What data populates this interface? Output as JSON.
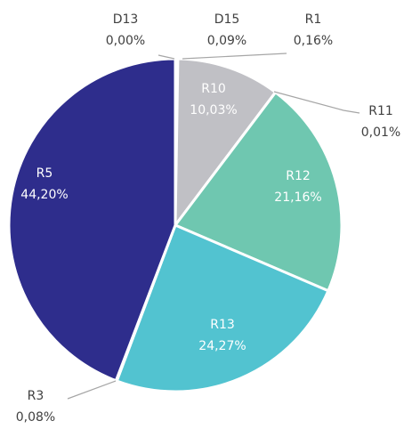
{
  "chart_data": {
    "type": "pie",
    "categories": [
      "D13",
      "D15",
      "R1",
      "R10",
      "R11",
      "R12",
      "R13",
      "R3",
      "R5"
    ],
    "values": [
      0.0,
      0.09,
      0.16,
      10.03,
      0.01,
      21.16,
      24.27,
      0.08,
      44.2
    ],
    "value_labels": [
      "0,00%",
      "0,09%",
      "0,16%",
      "10,03%",
      "0,01%",
      "21,16%",
      "24,27%",
      "0,08%",
      "44,20%"
    ],
    "colors": [
      "#a9a9b0",
      "#8c8c96",
      "#9fa0a8",
      "#c0c0c5",
      "#5fb8a0",
      "#6fc7b0",
      "#52c3d0",
      "#3a3a9a",
      "#2e2d8c"
    ]
  }
}
